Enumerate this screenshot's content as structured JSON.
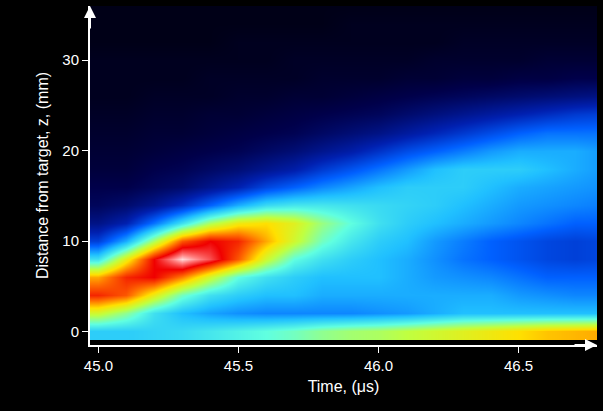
{
  "chart_data": {
    "type": "heatmap",
    "x_label": "Time, (μs)",
    "y_label": "Distance from target, z, (mm)",
    "x": [
      45.0,
      45.1,
      45.2,
      45.3,
      45.4,
      45.5,
      45.6,
      45.7,
      45.8,
      45.9,
      46.0,
      46.1,
      46.2,
      46.3,
      46.4,
      46.5,
      46.6,
      46.7,
      46.8
    ],
    "y": [
      0,
      2,
      4,
      6,
      8,
      10,
      12,
      14,
      16,
      18,
      20,
      22,
      24,
      26,
      28,
      30,
      32,
      34,
      36
    ],
    "z": [
      [
        42,
        42,
        43,
        44,
        46,
        48,
        50,
        52,
        55,
        57,
        58,
        60,
        62,
        64,
        66,
        68,
        70,
        71,
        72
      ],
      [
        62,
        55,
        45,
        40,
        37,
        35,
        34,
        34,
        34,
        34,
        35,
        36,
        38,
        40,
        40,
        40,
        40,
        40,
        40
      ],
      [
        82,
        78,
        65,
        52,
        45,
        42,
        40,
        40,
        38,
        38,
        38,
        38,
        38,
        38,
        38,
        36,
        35,
        34,
        34
      ],
      [
        72,
        82,
        85,
        75,
        62,
        50,
        45,
        42,
        40,
        40,
        40,
        38,
        36,
        35,
        34,
        32,
        30,
        30,
        30
      ],
      [
        45,
        65,
        85,
        98,
        90,
        78,
        62,
        50,
        45,
        42,
        40,
        38,
        35,
        32,
        30,
        28,
        26,
        25,
        26
      ],
      [
        25,
        38,
        58,
        78,
        85,
        82,
        72,
        62,
        52,
        46,
        42,
        40,
        36,
        33,
        30,
        28,
        26,
        25,
        26
      ],
      [
        15,
        20,
        32,
        45,
        58,
        66,
        68,
        64,
        56,
        50,
        45,
        42,
        40,
        38,
        36,
        34,
        32,
        30,
        30
      ],
      [
        10,
        12,
        16,
        22,
        30,
        38,
        44,
        46,
        46,
        45,
        44,
        43,
        42,
        40,
        38,
        36,
        35,
        34,
        33
      ],
      [
        8,
        8,
        10,
        12,
        16,
        20,
        26,
        30,
        34,
        37,
        40,
        42,
        42,
        42,
        40,
        38,
        37,
        36,
        35
      ],
      [
        6,
        6,
        8,
        9,
        11,
        13,
        16,
        19,
        24,
        28,
        32,
        36,
        40,
        42,
        42,
        42,
        40,
        38,
        36
      ],
      [
        5,
        5,
        6,
        7,
        8,
        9,
        11,
        13,
        16,
        19,
        23,
        27,
        30,
        33,
        36,
        38,
        38,
        38,
        36
      ],
      [
        4,
        4,
        5,
        5,
        6,
        7,
        8,
        9,
        11,
        13,
        15,
        18,
        21,
        24,
        27,
        30,
        32,
        32,
        32
      ],
      [
        3,
        3,
        4,
        4,
        5,
        5,
        6,
        7,
        8,
        9,
        10,
        12,
        14,
        16,
        18,
        20,
        22,
        24,
        25
      ],
      [
        2,
        2,
        3,
        3,
        3,
        4,
        4,
        5,
        5,
        6,
        7,
        8,
        9,
        10,
        11,
        12,
        13,
        14,
        15
      ],
      [
        2,
        2,
        2,
        2,
        3,
        3,
        3,
        3,
        4,
        4,
        4,
        5,
        5,
        6,
        6,
        7,
        7,
        8,
        8
      ],
      [
        2,
        2,
        2,
        2,
        2,
        2,
        2,
        3,
        3,
        3,
        3,
        3,
        4,
        4,
        4,
        4,
        5,
        5,
        5
      ],
      [
        1,
        1,
        1,
        1,
        1,
        2,
        2,
        2,
        2,
        2,
        2,
        2,
        2,
        3,
        3,
        3,
        3,
        3,
        3
      ],
      [
        1,
        1,
        1,
        1,
        1,
        1,
        1,
        1,
        1,
        2,
        2,
        2,
        2,
        2,
        2,
        2,
        2,
        2,
        2
      ],
      [
        1,
        1,
        1,
        1,
        1,
        1,
        1,
        1,
        1,
        1,
        1,
        1,
        1,
        1,
        1,
        1,
        1,
        1,
        1
      ]
    ],
    "zlim": [
      0,
      100
    ],
    "xlim": [
      44.97,
      46.78
    ],
    "ylim": [
      -1.5,
      36
    ],
    "xticks": [
      {
        "value": 45,
        "label": "45.0"
      },
      45.5,
      {
        "value": 46,
        "label": "46.0"
      },
      46.5
    ],
    "yticks": [
      0,
      10,
      20,
      30
    ],
    "grid": false
  }
}
